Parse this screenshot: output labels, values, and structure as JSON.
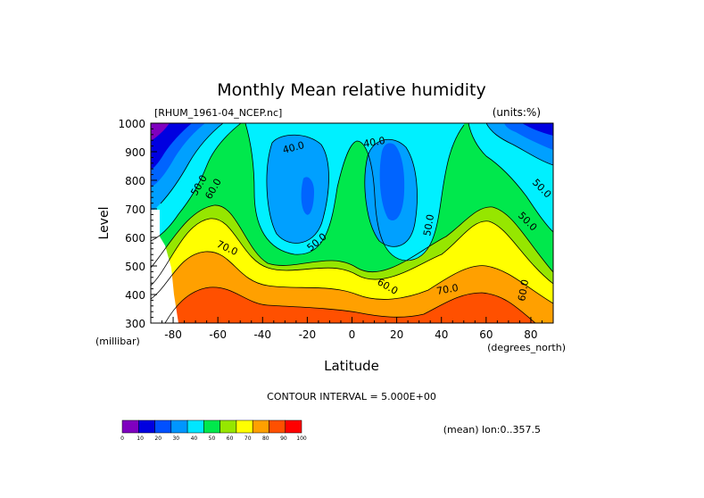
{
  "chart_data": {
    "type": "contour",
    "title": "Monthly Mean relative humidity",
    "source_file": "[RHUM_1961-04_NCEP.nc]",
    "units_label": "(units:%)",
    "xlabel": "Latitude",
    "x_units": "(degrees_north)",
    "ylabel": "Level",
    "y_units": "(millibar)",
    "x_ticks": [
      "-80",
      "-60",
      "-40",
      "-20",
      "0",
      "20",
      "40",
      "60",
      "80"
    ],
    "x_tick_values": [
      -80,
      -60,
      -40,
      -20,
      0,
      20,
      40,
      60,
      80
    ],
    "y_ticks": [
      "300",
      "400",
      "500",
      "600",
      "700",
      "800",
      "900",
      "1000"
    ],
    "y_tick_values": [
      300,
      400,
      500,
      600,
      700,
      800,
      900,
      1000
    ],
    "xlim": [
      -90,
      90
    ],
    "ylim": [
      1000,
      300
    ],
    "contour_interval_text": "CONTOUR INTERVAL = 5.000E+00",
    "contour_labels": [
      "40.0",
      "40.0",
      "50.0",
      "60.0",
      "50.0",
      "70.0",
      "50.0",
      "60.0",
      "50.0",
      "70.0",
      "50.0",
      "60.0"
    ],
    "footer_text": "(mean) lon:0..357.5",
    "colorbar": {
      "ticks": [
        "0",
        "10",
        "20",
        "30",
        "40",
        "50",
        "60",
        "70",
        "80",
        "90",
        "100"
      ],
      "colors": [
        "#7f00bf",
        "#0000e0",
        "#0050ff",
        "#0096ff",
        "#00e6ff",
        "#00e84c",
        "#96e600",
        "#ffff00",
        "#ffa000",
        "#ff5000",
        "#ff0000"
      ]
    },
    "field_colors": {
      "purple": "#7f00bf",
      "blue": "#0000e0",
      "mid_blue": "#0064ff",
      "light_blue": "#00a0ff",
      "cyan": "#00f0ff",
      "green": "#00e84c",
      "yellow_green": "#96e600",
      "yellow": "#ffff00",
      "orange": "#ffa000",
      "red_orange": "#ff5000"
    }
  }
}
